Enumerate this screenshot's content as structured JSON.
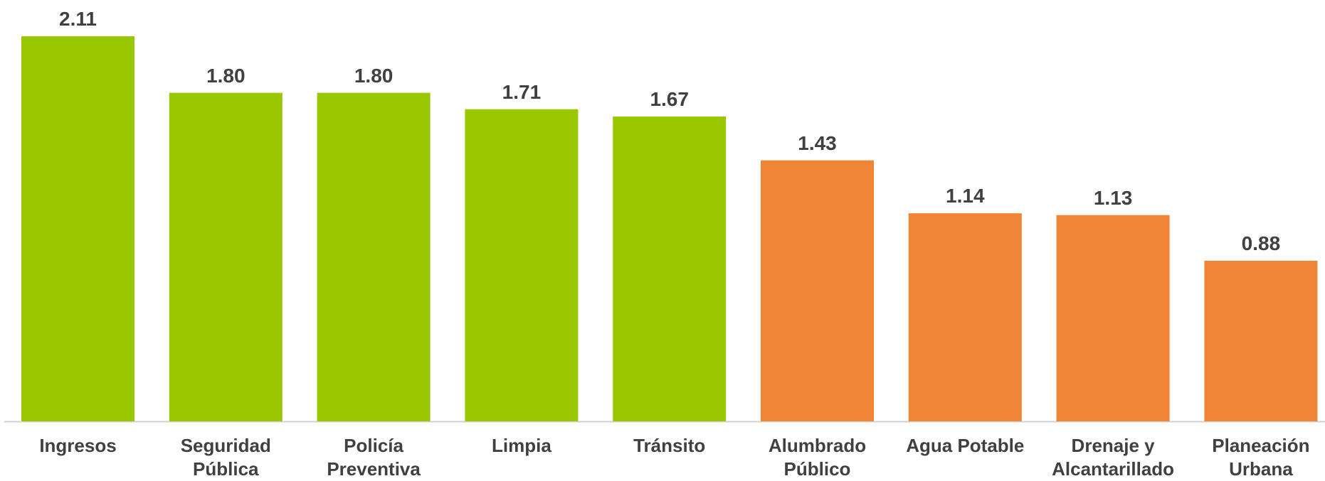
{
  "chart_data": {
    "type": "bar",
    "categories": [
      "Ingresos",
      "Seguridad Pública",
      "Policía Preventiva",
      "Limpia",
      "Tránsito",
      "Alumbrado Público",
      "Agua Potable",
      "Drenaje y Alcantarillado",
      "Planeación Urbana"
    ],
    "values": [
      2.11,
      1.8,
      1.8,
      1.71,
      1.67,
      1.43,
      1.14,
      1.13,
      0.88
    ],
    "value_labels": [
      "2.11",
      "1.80",
      "1.80",
      "1.71",
      "1.67",
      "1.43",
      "1.14",
      "1.13",
      "0.88"
    ],
    "colors": [
      "#99c800",
      "#99c800",
      "#99c800",
      "#99c800",
      "#99c800",
      "#ef8535",
      "#ef8535",
      "#ef8535",
      "#ef8535"
    ]
  }
}
